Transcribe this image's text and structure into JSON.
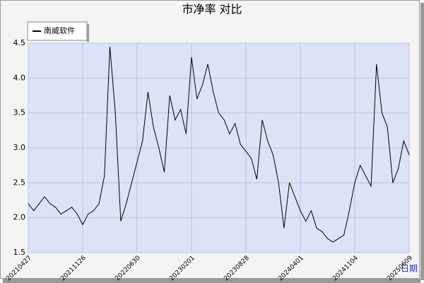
{
  "chart_data": {
    "type": "line",
    "title": "市净率  对比",
    "x_label": "日期",
    "categories": [
      "20210427",
      null,
      null,
      null,
      null,
      null,
      null,
      null,
      null,
      null,
      "20211126",
      null,
      null,
      null,
      null,
      null,
      null,
      null,
      null,
      null,
      "20220630",
      null,
      null,
      null,
      null,
      null,
      null,
      null,
      null,
      null,
      "20230201",
      null,
      null,
      null,
      null,
      null,
      null,
      null,
      null,
      null,
      "20230828",
      null,
      null,
      null,
      null,
      null,
      null,
      null,
      null,
      null,
      "20240401",
      null,
      null,
      null,
      null,
      null,
      null,
      null,
      null,
      null,
      "20241104",
      null,
      null,
      null,
      null,
      null,
      null,
      null,
      null,
      null,
      "20250609"
    ],
    "series": [
      {
        "name": "南威软件",
        "color": "#000000",
        "values": [
          2.2,
          2.1,
          2.2,
          2.3,
          2.2,
          2.15,
          2.05,
          2.1,
          2.15,
          2.05,
          1.9,
          2.05,
          2.1,
          2.2,
          2.6,
          4.45,
          3.5,
          1.95,
          2.2,
          2.5,
          2.8,
          3.1,
          3.8,
          3.3,
          3.0,
          2.65,
          3.75,
          3.4,
          3.55,
          3.2,
          4.3,
          3.7,
          3.9,
          4.2,
          3.8,
          3.5,
          3.4,
          3.2,
          3.35,
          3.05,
          2.95,
          2.85,
          2.55,
          3.4,
          3.1,
          2.9,
          2.5,
          1.85,
          2.5,
          2.3,
          2.1,
          1.95,
          2.1,
          1.85,
          1.8,
          1.7,
          1.65,
          1.7,
          1.75,
          2.1,
          2.5,
          2.75,
          2.6,
          2.45,
          4.2,
          3.5,
          3.3,
          2.5,
          2.7,
          3.1,
          2.9
        ]
      }
    ],
    "ylim": [
      1.5,
      4.5
    ],
    "yticks": [
      1.5,
      {
        "value": 2,
        "label": "2.0"
      },
      2.5,
      {
        "value": 3,
        "label": "3.0"
      },
      3.5,
      {
        "value": 4,
        "label": "4.0"
      },
      4.5
    ],
    "grid": true,
    "legend": "top-left"
  }
}
